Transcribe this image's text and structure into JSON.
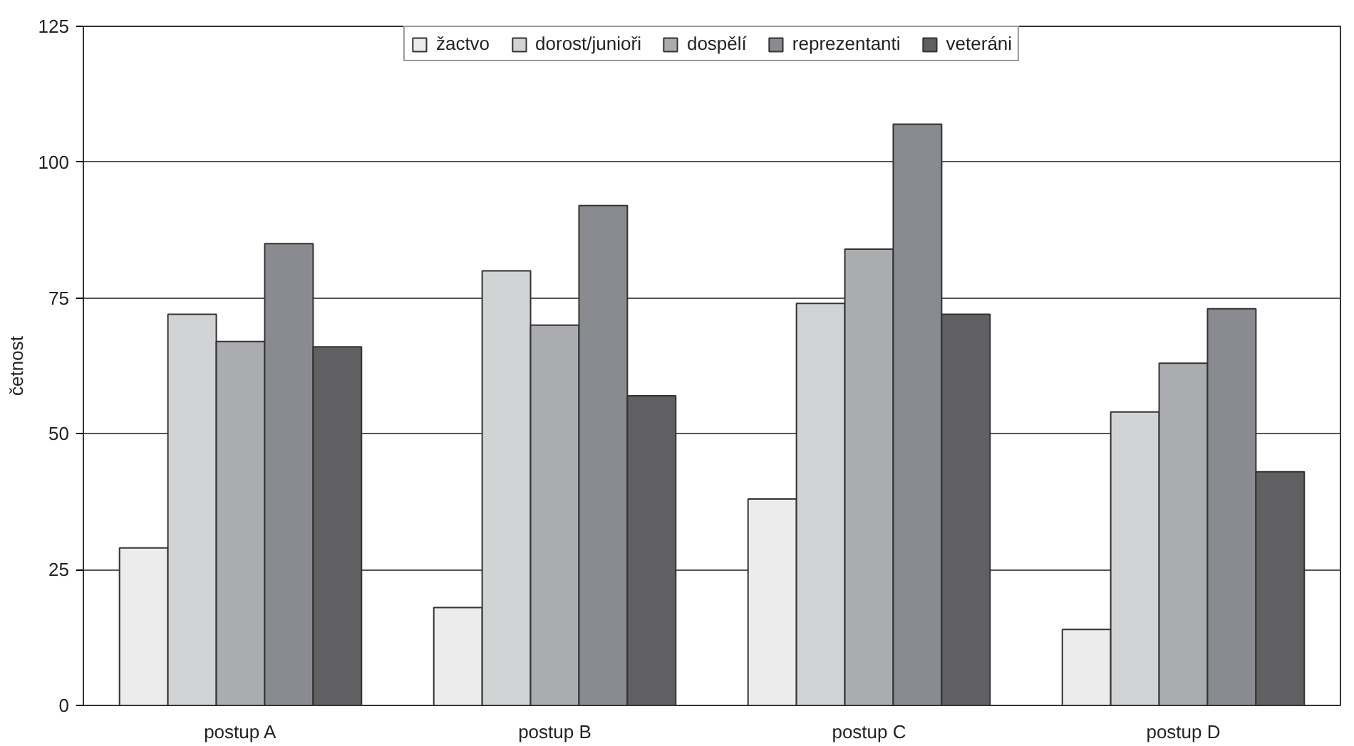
{
  "chart_data": {
    "type": "bar",
    "ylabel": "četnost",
    "categories": [
      "postup A",
      "postup B",
      "postup C",
      "postup D"
    ],
    "series": [
      {
        "name": "žactvo",
        "color": "#ececec",
        "values": [
          29,
          18,
          38,
          14
        ]
      },
      {
        "name": "dorost/junioři",
        "color": "#d2d3d5",
        "values": [
          72,
          80,
          74,
          54
        ]
      },
      {
        "name": "dospělí",
        "color": "#abacb0",
        "values": [
          67,
          70,
          84,
          63
        ]
      },
      {
        "name": "reprezentanti",
        "color": "#8a8b90",
        "values": [
          85,
          92,
          107,
          73
        ]
      },
      {
        "name": "veteráni",
        "color": "#606062",
        "values": [
          66,
          57,
          72,
          43
        ]
      }
    ],
    "ylim": [
      0,
      125
    ],
    "yticks": [
      0,
      25,
      50,
      75,
      100,
      125
    ],
    "grid": "y",
    "legend": "top"
  }
}
